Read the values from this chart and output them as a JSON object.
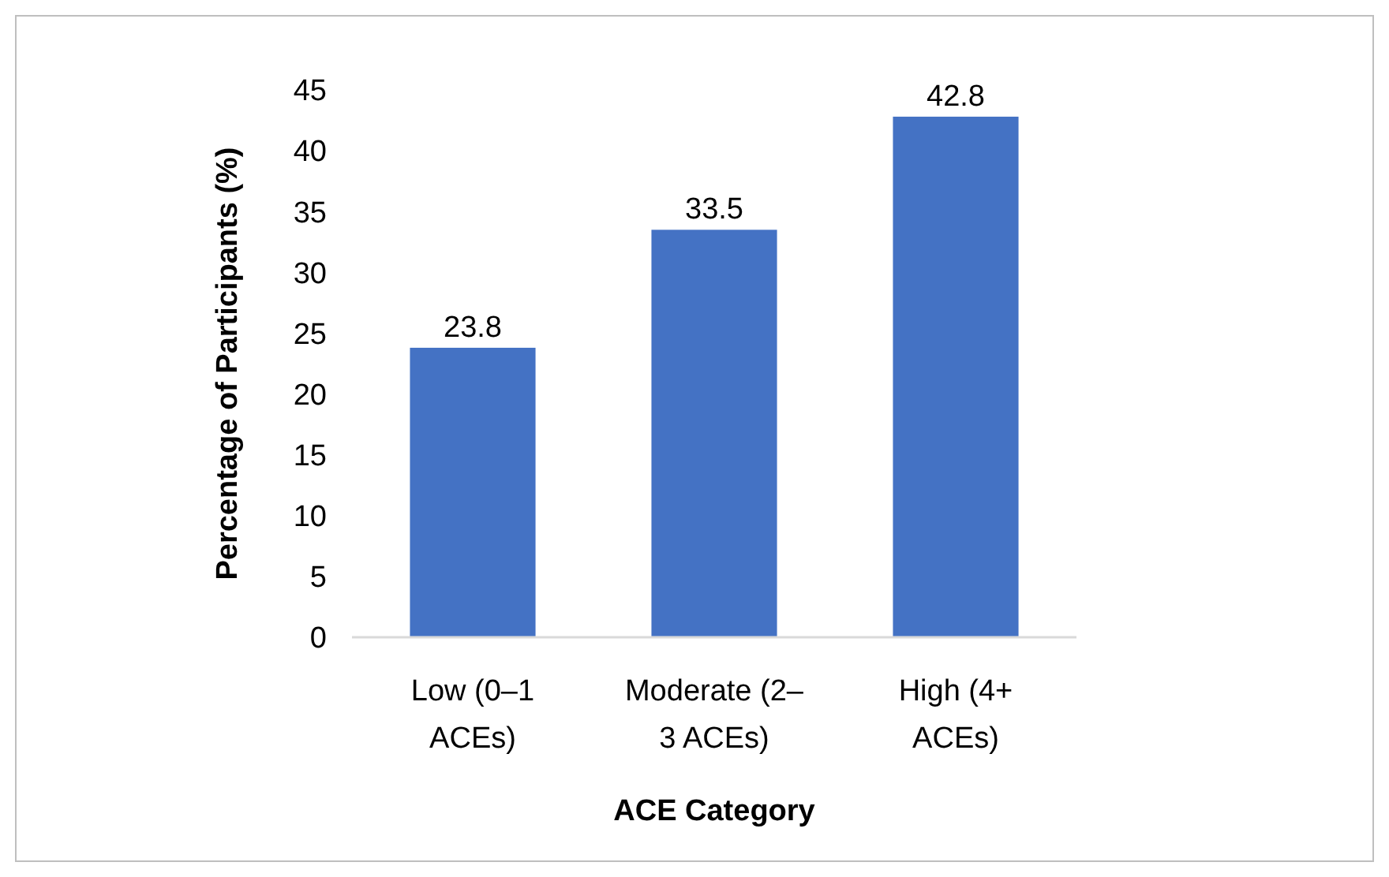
{
  "chart_data": {
    "type": "bar",
    "xlabel": "ACE Category",
    "ylabel": "Percentage of Participants (%)",
    "categories": [
      "Low (0–1 ACEs)",
      "Moderate (2–3 ACEs)",
      "High (4+ ACEs)"
    ],
    "values": [
      23.8,
      33.5,
      42.8
    ],
    "color": "#4472c4",
    "ylim": [
      0,
      45
    ],
    "yticks": [
      0,
      5,
      10,
      15,
      20,
      25,
      30,
      35,
      40,
      45
    ],
    "grid": false,
    "data_labels": true
  }
}
